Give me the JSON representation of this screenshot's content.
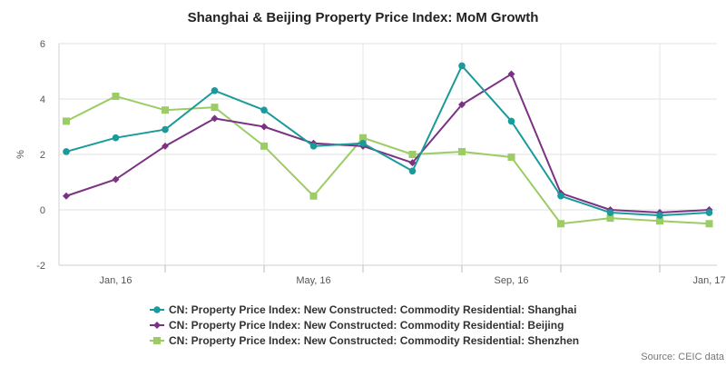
{
  "chart_data": {
    "type": "line",
    "title": "Shanghai & Beijing Property Price Index: MoM Growth",
    "ylabel": "%",
    "xlabel": "",
    "ylim": [
      -2,
      6
    ],
    "yticks": [
      -2,
      0,
      2,
      4,
      6
    ],
    "x": [
      "Dec 2015",
      "Jan 2016",
      "Feb 2016",
      "Mar 2016",
      "Apr 2016",
      "May 2016",
      "Jun 2016",
      "Jul 2016",
      "Aug 2016",
      "Sep 2016",
      "Oct 2016",
      "Nov 2016",
      "Dec 2016",
      "Jan 2017"
    ],
    "xtick_labels": [
      {
        "x": "Jan 2016",
        "label": "Jan, 16"
      },
      {
        "x": "May 2016",
        "label": "May, 16"
      },
      {
        "x": "Sep 2016",
        "label": "Sep, 16"
      },
      {
        "x": "Jan 2017",
        "label": "Jan, 17"
      }
    ],
    "grid": true,
    "legend_position": "bottom",
    "series": [
      {
        "name": "CN: Property Price Index: New Constructed: Commodity Residential: Shanghai",
        "color": "#1a9a9a",
        "marker": "circle",
        "values": [
          2.1,
          2.6,
          2.9,
          4.3,
          3.6,
          2.3,
          2.4,
          1.4,
          5.2,
          3.2,
          0.5,
          -0.1,
          -0.2,
          -0.1
        ]
      },
      {
        "name": "CN: Property Price Index: New Constructed: Commodity Residential: Beijing",
        "color": "#7b3283",
        "marker": "diamond",
        "values": [
          0.5,
          1.1,
          2.3,
          3.3,
          3.0,
          2.4,
          2.3,
          1.7,
          3.8,
          4.9,
          0.6,
          0.0,
          -0.1,
          0.0
        ]
      },
      {
        "name": "CN: Property Price Index: New Constructed: Commodity Residential: Shenzhen",
        "color": "#9ccc65",
        "marker": "square",
        "values": [
          3.2,
          4.1,
          3.6,
          3.7,
          2.3,
          0.5,
          2.6,
          2.0,
          2.1,
          1.9,
          -0.5,
          -0.3,
          -0.4,
          -0.5
        ]
      }
    ]
  },
  "source": "Source: CEIC data"
}
